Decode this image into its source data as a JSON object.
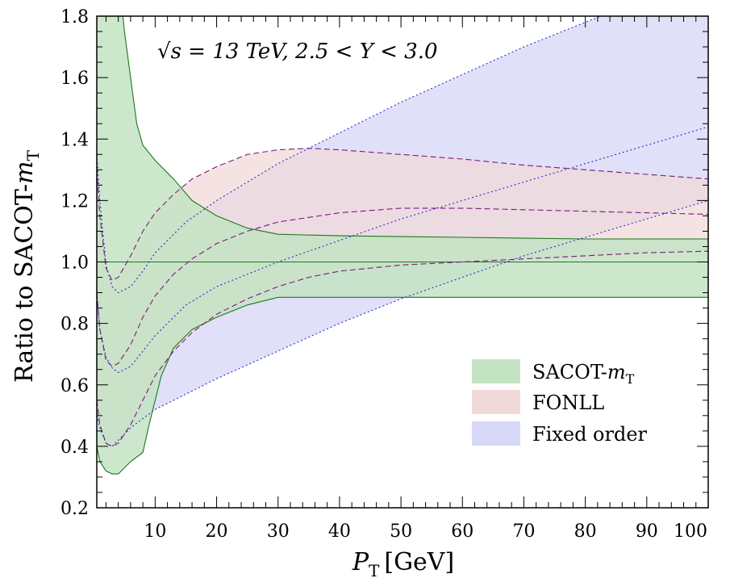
{
  "chart_data": {
    "type": "area",
    "xlabel": "P",
    "xlabel_sub": "T",
    "xlabel_unit": "[GeV]",
    "ylabel": "Ratio to SACOT-",
    "ylabel_italic": "m",
    "ylabel_sub": "T",
    "xlim": [
      0.5,
      100
    ],
    "ylim": [
      0.2,
      1.8
    ],
    "xticks": [
      10,
      20,
      30,
      40,
      50,
      60,
      70,
      80,
      90,
      100
    ],
    "yticks": [
      0.2,
      0.4,
      0.6,
      0.8,
      1.0,
      1.2,
      1.4,
      1.6,
      1.8
    ],
    "ytick_labels": [
      "0.2",
      "0.4",
      "0.6",
      "0.8",
      "1.0",
      "1.2",
      "1.4",
      "1.6",
      "1.8"
    ],
    "annotation": "√s = 13 TeV, 2.5 < Y < 3.0",
    "legend_position": "bottom-right",
    "series": [
      {
        "name": "SACOT-mT",
        "legend_label": "SACOT-",
        "legend_italic": "m",
        "legend_sub": "T",
        "color": "#c3e3c3",
        "edge_color": "#1a7a1a",
        "upper": [
          [
            0.5,
            2.6
          ],
          [
            2,
            2.3
          ],
          [
            3.5,
            2.05
          ],
          [
            5,
            1.75
          ],
          [
            7,
            1.45
          ],
          [
            8,
            1.38
          ],
          [
            10,
            1.33
          ],
          [
            13,
            1.27
          ],
          [
            16,
            1.2
          ],
          [
            20,
            1.15
          ],
          [
            25,
            1.11
          ],
          [
            30,
            1.09
          ],
          [
            40,
            1.085
          ],
          [
            60,
            1.08
          ],
          [
            80,
            1.075
          ],
          [
            100,
            1.075
          ]
        ],
        "lower": [
          [
            0.5,
            0.4
          ],
          [
            1,
            0.35
          ],
          [
            2,
            0.32
          ],
          [
            3,
            0.31
          ],
          [
            4,
            0.31
          ],
          [
            6,
            0.35
          ],
          [
            8,
            0.38
          ],
          [
            9,
            0.47
          ],
          [
            11,
            0.63
          ],
          [
            13,
            0.72
          ],
          [
            16,
            0.78
          ],
          [
            20,
            0.82
          ],
          [
            25,
            0.86
          ],
          [
            30,
            0.885
          ],
          [
            40,
            0.885
          ],
          [
            60,
            0.885
          ],
          [
            100,
            0.885
          ]
        ],
        "central": [
          [
            0.5,
            1.0
          ],
          [
            100,
            1.0
          ]
        ]
      },
      {
        "name": "FONLL",
        "legend_label": "FONLL",
        "color": "#f2d9d9",
        "edge_color": "#7a1a7a",
        "upper": [
          [
            0.5,
            1.3
          ],
          [
            1,
            1.15
          ],
          [
            2,
            0.98
          ],
          [
            3,
            0.94
          ],
          [
            4,
            0.95
          ],
          [
            6,
            1.02
          ],
          [
            8,
            1.1
          ],
          [
            10,
            1.16
          ],
          [
            13,
            1.22
          ],
          [
            16,
            1.27
          ],
          [
            20,
            1.31
          ],
          [
            25,
            1.35
          ],
          [
            30,
            1.365
          ],
          [
            35,
            1.37
          ],
          [
            40,
            1.365
          ],
          [
            50,
            1.35
          ],
          [
            60,
            1.335
          ],
          [
            70,
            1.315
          ],
          [
            80,
            1.3
          ],
          [
            90,
            1.285
          ],
          [
            100,
            1.27
          ]
        ],
        "lower": [
          [
            0.5,
            0.55
          ],
          [
            1,
            0.47
          ],
          [
            2,
            0.41
          ],
          [
            3,
            0.4
          ],
          [
            4,
            0.41
          ],
          [
            6,
            0.47
          ],
          [
            8,
            0.55
          ],
          [
            10,
            0.63
          ],
          [
            13,
            0.71
          ],
          [
            16,
            0.77
          ],
          [
            20,
            0.83
          ],
          [
            25,
            0.88
          ],
          [
            30,
            0.92
          ],
          [
            35,
            0.95
          ],
          [
            40,
            0.97
          ],
          [
            50,
            0.99
          ],
          [
            60,
            1.0
          ],
          [
            70,
            1.01
          ],
          [
            80,
            1.02
          ],
          [
            90,
            1.03
          ],
          [
            100,
            1.035
          ]
        ],
        "central": [
          [
            0.5,
            0.9
          ],
          [
            1,
            0.78
          ],
          [
            2,
            0.68
          ],
          [
            3,
            0.66
          ],
          [
            4,
            0.67
          ],
          [
            6,
            0.73
          ],
          [
            8,
            0.82
          ],
          [
            10,
            0.89
          ],
          [
            13,
            0.96
          ],
          [
            16,
            1.01
          ],
          [
            20,
            1.06
          ],
          [
            25,
            1.1
          ],
          [
            30,
            1.13
          ],
          [
            40,
            1.16
          ],
          [
            50,
            1.175
          ],
          [
            60,
            1.175
          ],
          [
            70,
            1.17
          ],
          [
            80,
            1.165
          ],
          [
            90,
            1.16
          ],
          [
            100,
            1.155
          ]
        ]
      },
      {
        "name": "Fixed order",
        "legend_label": "Fixed order",
        "color": "#d8d8f8",
        "edge_color": "#2a2ad0",
        "upper": [
          [
            0.5,
            1.35
          ],
          [
            1,
            1.2
          ],
          [
            2,
            0.99
          ],
          [
            3,
            0.92
          ],
          [
            4,
            0.9
          ],
          [
            6,
            0.92
          ],
          [
            8,
            0.97
          ],
          [
            10,
            1.03
          ],
          [
            15,
            1.13
          ],
          [
            20,
            1.2
          ],
          [
            30,
            1.32
          ],
          [
            40,
            1.42
          ],
          [
            50,
            1.52
          ],
          [
            60,
            1.61
          ],
          [
            70,
            1.7
          ],
          [
            80,
            1.78
          ],
          [
            90,
            1.86
          ],
          [
            100,
            1.93
          ]
        ],
        "lower": [
          [
            0.5,
            0.5
          ],
          [
            1,
            0.46
          ],
          [
            2,
            0.41
          ],
          [
            3,
            0.4
          ],
          [
            4,
            0.42
          ],
          [
            6,
            0.46
          ],
          [
            8,
            0.49
          ],
          [
            10,
            0.52
          ],
          [
            15,
            0.57
          ],
          [
            20,
            0.62
          ],
          [
            30,
            0.71
          ],
          [
            40,
            0.8
          ],
          [
            50,
            0.88
          ],
          [
            60,
            0.95
          ],
          [
            70,
            1.02
          ],
          [
            80,
            1.08
          ],
          [
            90,
            1.14
          ],
          [
            100,
            1.2
          ]
        ],
        "central": [
          [
            0.5,
            0.9
          ],
          [
            1,
            0.78
          ],
          [
            2,
            0.69
          ],
          [
            3,
            0.655
          ],
          [
            4,
            0.64
          ],
          [
            6,
            0.66
          ],
          [
            8,
            0.71
          ],
          [
            10,
            0.76
          ],
          [
            15,
            0.86
          ],
          [
            20,
            0.92
          ],
          [
            30,
            1.0
          ],
          [
            40,
            1.07
          ],
          [
            50,
            1.14
          ],
          [
            60,
            1.2
          ],
          [
            70,
            1.26
          ],
          [
            80,
            1.32
          ],
          [
            90,
            1.38
          ],
          [
            100,
            1.44
          ]
        ]
      }
    ]
  }
}
